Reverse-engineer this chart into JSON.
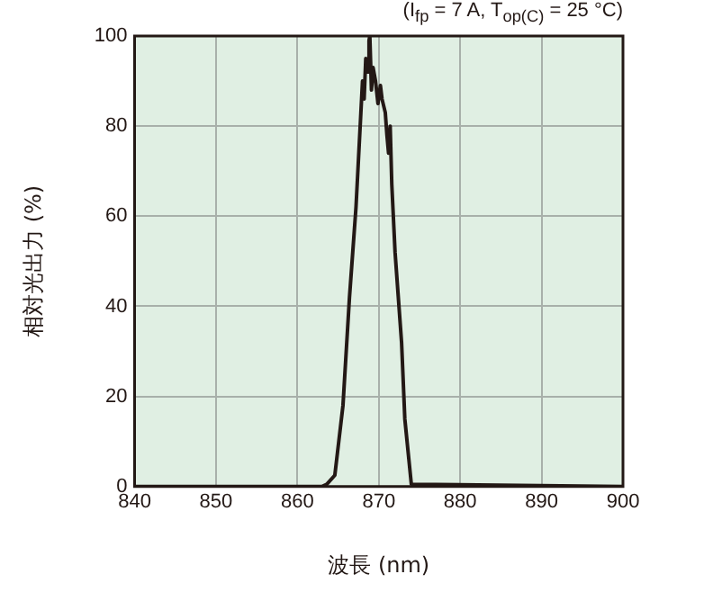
{
  "chart_data": {
    "type": "line",
    "xlabel": "波長 (nm)",
    "ylabel": "相対光出力 (%)",
    "annotations": [
      "(I$_{fp}$ = 7 A, T$_{op(C)}$ = 25 °C)"
    ],
    "x": [
      840,
      863,
      863.6,
      864.6,
      865.6,
      866.4,
      867.2,
      867.8,
      868.0,
      868.2,
      868.4,
      868.6,
      868.8,
      868.9,
      869.1,
      869.3,
      869.6,
      869.9,
      870.2,
      870.4,
      870.8,
      871.0,
      871.2,
      871.4,
      871.6,
      872.0,
      872.8,
      873.2,
      874,
      900
    ],
    "series": [
      {
        "color": "#231815",
        "values": [
          0,
          0,
          0.5,
          2.5,
          18,
          42,
          62,
          83,
          90,
          86,
          95,
          92,
          99,
          100,
          88,
          93,
          90,
          85,
          89,
          86,
          83,
          78,
          74,
          80,
          67,
          52,
          32,
          15,
          0.5,
          0
        ]
      }
    ],
    "xlim": [
      840,
      900
    ],
    "xticks": [
      840,
      850,
      860,
      870,
      880,
      890,
      900
    ],
    "ylim": [
      0,
      100
    ],
    "yticks": [
      0,
      20,
      40,
      60,
      80,
      100
    ],
    "grid": true,
    "legend": false,
    "marker": "none",
    "line_style": "solid"
  }
}
